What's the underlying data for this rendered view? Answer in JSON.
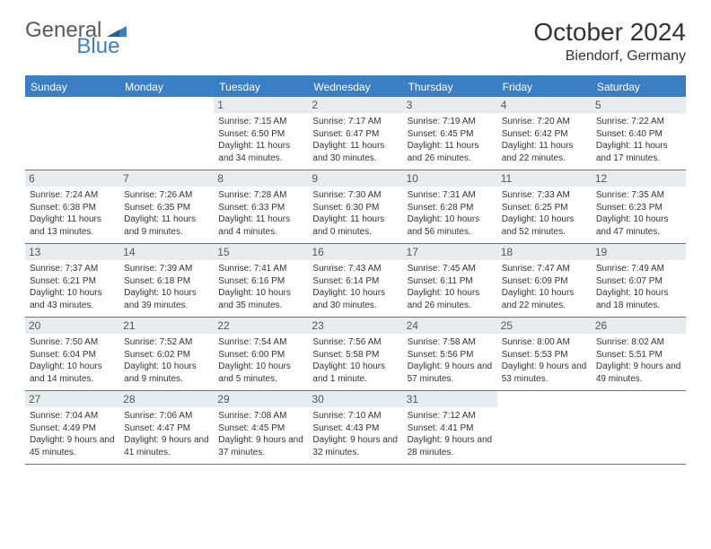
{
  "brand": {
    "part1": "General",
    "part2": "Blue"
  },
  "title": "October 2024",
  "location": "Biendorf, Germany",
  "colors": {
    "accent": "#3a7fc4",
    "header_bg": "#e8ecef",
    "text": "#333333",
    "logo_gray": "#5a5a5a",
    "background": "#ffffff"
  },
  "typography": {
    "base_font": "Arial",
    "title_size_pt": 21,
    "location_size_pt": 12,
    "cell_size_pt": 7.5
  },
  "day_names": [
    "Sunday",
    "Monday",
    "Tuesday",
    "Wednesday",
    "Thursday",
    "Friday",
    "Saturday"
  ],
  "weeks": [
    [
      {
        "day": "",
        "sunrise": "",
        "sunset": "",
        "daylight": ""
      },
      {
        "day": "",
        "sunrise": "",
        "sunset": "",
        "daylight": ""
      },
      {
        "day": "1",
        "sunrise": "Sunrise: 7:15 AM",
        "sunset": "Sunset: 6:50 PM",
        "daylight": "Daylight: 11 hours and 34 minutes."
      },
      {
        "day": "2",
        "sunrise": "Sunrise: 7:17 AM",
        "sunset": "Sunset: 6:47 PM",
        "daylight": "Daylight: 11 hours and 30 minutes."
      },
      {
        "day": "3",
        "sunrise": "Sunrise: 7:19 AM",
        "sunset": "Sunset: 6:45 PM",
        "daylight": "Daylight: 11 hours and 26 minutes."
      },
      {
        "day": "4",
        "sunrise": "Sunrise: 7:20 AM",
        "sunset": "Sunset: 6:42 PM",
        "daylight": "Daylight: 11 hours and 22 minutes."
      },
      {
        "day": "5",
        "sunrise": "Sunrise: 7:22 AM",
        "sunset": "Sunset: 6:40 PM",
        "daylight": "Daylight: 11 hours and 17 minutes."
      }
    ],
    [
      {
        "day": "6",
        "sunrise": "Sunrise: 7:24 AM",
        "sunset": "Sunset: 6:38 PM",
        "daylight": "Daylight: 11 hours and 13 minutes."
      },
      {
        "day": "7",
        "sunrise": "Sunrise: 7:26 AM",
        "sunset": "Sunset: 6:35 PM",
        "daylight": "Daylight: 11 hours and 9 minutes."
      },
      {
        "day": "8",
        "sunrise": "Sunrise: 7:28 AM",
        "sunset": "Sunset: 6:33 PM",
        "daylight": "Daylight: 11 hours and 4 minutes."
      },
      {
        "day": "9",
        "sunrise": "Sunrise: 7:30 AM",
        "sunset": "Sunset: 6:30 PM",
        "daylight": "Daylight: 11 hours and 0 minutes."
      },
      {
        "day": "10",
        "sunrise": "Sunrise: 7:31 AM",
        "sunset": "Sunset: 6:28 PM",
        "daylight": "Daylight: 10 hours and 56 minutes."
      },
      {
        "day": "11",
        "sunrise": "Sunrise: 7:33 AM",
        "sunset": "Sunset: 6:25 PM",
        "daylight": "Daylight: 10 hours and 52 minutes."
      },
      {
        "day": "12",
        "sunrise": "Sunrise: 7:35 AM",
        "sunset": "Sunset: 6:23 PM",
        "daylight": "Daylight: 10 hours and 47 minutes."
      }
    ],
    [
      {
        "day": "13",
        "sunrise": "Sunrise: 7:37 AM",
        "sunset": "Sunset: 6:21 PM",
        "daylight": "Daylight: 10 hours and 43 minutes."
      },
      {
        "day": "14",
        "sunrise": "Sunrise: 7:39 AM",
        "sunset": "Sunset: 6:18 PM",
        "daylight": "Daylight: 10 hours and 39 minutes."
      },
      {
        "day": "15",
        "sunrise": "Sunrise: 7:41 AM",
        "sunset": "Sunset: 6:16 PM",
        "daylight": "Daylight: 10 hours and 35 minutes."
      },
      {
        "day": "16",
        "sunrise": "Sunrise: 7:43 AM",
        "sunset": "Sunset: 6:14 PM",
        "daylight": "Daylight: 10 hours and 30 minutes."
      },
      {
        "day": "17",
        "sunrise": "Sunrise: 7:45 AM",
        "sunset": "Sunset: 6:11 PM",
        "daylight": "Daylight: 10 hours and 26 minutes."
      },
      {
        "day": "18",
        "sunrise": "Sunrise: 7:47 AM",
        "sunset": "Sunset: 6:09 PM",
        "daylight": "Daylight: 10 hours and 22 minutes."
      },
      {
        "day": "19",
        "sunrise": "Sunrise: 7:49 AM",
        "sunset": "Sunset: 6:07 PM",
        "daylight": "Daylight: 10 hours and 18 minutes."
      }
    ],
    [
      {
        "day": "20",
        "sunrise": "Sunrise: 7:50 AM",
        "sunset": "Sunset: 6:04 PM",
        "daylight": "Daylight: 10 hours and 14 minutes."
      },
      {
        "day": "21",
        "sunrise": "Sunrise: 7:52 AM",
        "sunset": "Sunset: 6:02 PM",
        "daylight": "Daylight: 10 hours and 9 minutes."
      },
      {
        "day": "22",
        "sunrise": "Sunrise: 7:54 AM",
        "sunset": "Sunset: 6:00 PM",
        "daylight": "Daylight: 10 hours and 5 minutes."
      },
      {
        "day": "23",
        "sunrise": "Sunrise: 7:56 AM",
        "sunset": "Sunset: 5:58 PM",
        "daylight": "Daylight: 10 hours and 1 minute."
      },
      {
        "day": "24",
        "sunrise": "Sunrise: 7:58 AM",
        "sunset": "Sunset: 5:56 PM",
        "daylight": "Daylight: 9 hours and 57 minutes."
      },
      {
        "day": "25",
        "sunrise": "Sunrise: 8:00 AM",
        "sunset": "Sunset: 5:53 PM",
        "daylight": "Daylight: 9 hours and 53 minutes."
      },
      {
        "day": "26",
        "sunrise": "Sunrise: 8:02 AM",
        "sunset": "Sunset: 5:51 PM",
        "daylight": "Daylight: 9 hours and 49 minutes."
      }
    ],
    [
      {
        "day": "27",
        "sunrise": "Sunrise: 7:04 AM",
        "sunset": "Sunset: 4:49 PM",
        "daylight": "Daylight: 9 hours and 45 minutes."
      },
      {
        "day": "28",
        "sunrise": "Sunrise: 7:06 AM",
        "sunset": "Sunset: 4:47 PM",
        "daylight": "Daylight: 9 hours and 41 minutes."
      },
      {
        "day": "29",
        "sunrise": "Sunrise: 7:08 AM",
        "sunset": "Sunset: 4:45 PM",
        "daylight": "Daylight: 9 hours and 37 minutes."
      },
      {
        "day": "30",
        "sunrise": "Sunrise: 7:10 AM",
        "sunset": "Sunset: 4:43 PM",
        "daylight": "Daylight: 9 hours and 32 minutes."
      },
      {
        "day": "31",
        "sunrise": "Sunrise: 7:12 AM",
        "sunset": "Sunset: 4:41 PM",
        "daylight": "Daylight: 9 hours and 28 minutes."
      },
      {
        "day": "",
        "sunrise": "",
        "sunset": "",
        "daylight": ""
      },
      {
        "day": "",
        "sunrise": "",
        "sunset": "",
        "daylight": ""
      }
    ]
  ]
}
